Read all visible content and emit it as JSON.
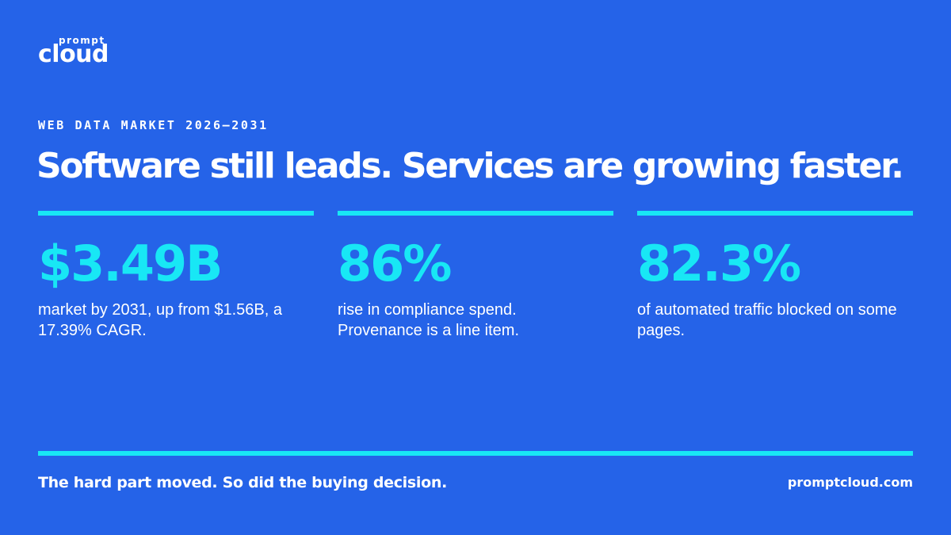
{
  "brand": {
    "logo_top": "prompt",
    "logo_main": "cloud"
  },
  "header": {
    "eyebrow": "WEB DATA MARKET 2026–2031",
    "headline": "Software still leads. Services are growing faster."
  },
  "stats": [
    {
      "value": "$3.49B",
      "description": "market by 2031, up from $1.56B, a 17.39% CAGR."
    },
    {
      "value": "86%",
      "description": "rise in compliance spend. Provenance is a line item."
    },
    {
      "value": "82.3%",
      "description": "of automated traffic blocked on some pages."
    }
  ],
  "footer": {
    "tagline": "The hard part moved. So did the buying decision.",
    "url": "promptcloud.com"
  },
  "colors": {
    "background": "#2563e8",
    "accent": "#18e7f5",
    "text": "#ffffff"
  }
}
